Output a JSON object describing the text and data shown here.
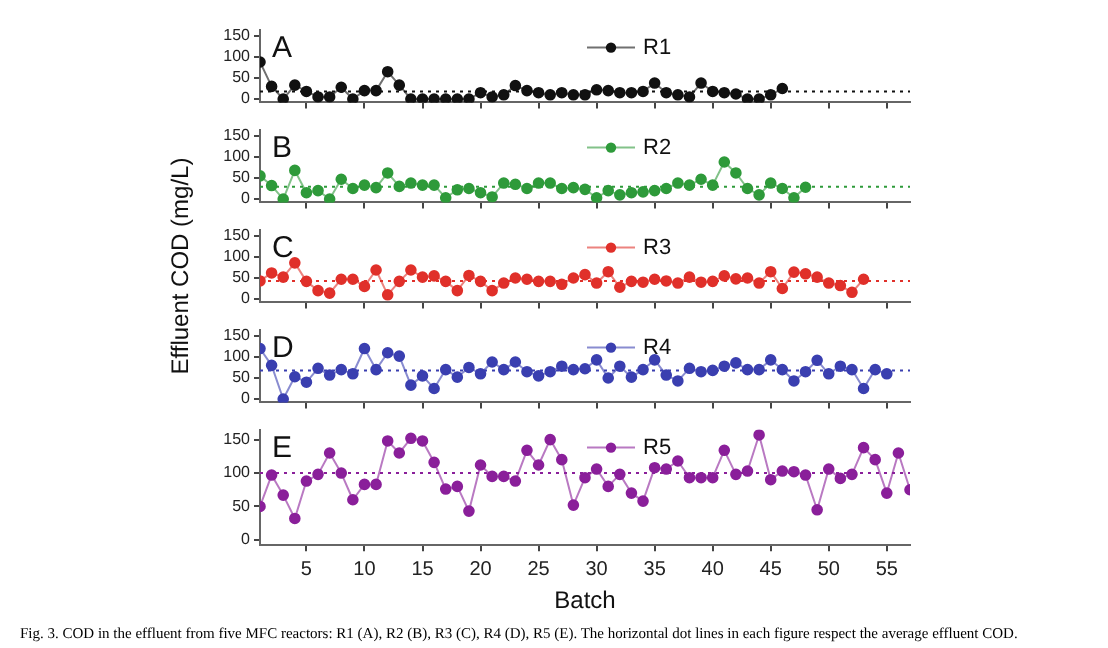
{
  "chart_data": [
    {
      "type": "line",
      "annotations": [
        "A"
      ],
      "legend": "top",
      "marker": "circle",
      "line_style": "solid",
      "grid": false,
      "tick_labels": "y",
      "xlim": [
        1,
        57
      ],
      "xticks": [
        5,
        10,
        15,
        20,
        25,
        30,
        35,
        40,
        45,
        50,
        55
      ],
      "ylim": [
        -8,
        165
      ],
      "yticks": [
        0,
        50,
        100,
        150
      ],
      "x": [
        1,
        2,
        3,
        4,
        5,
        6,
        7,
        8,
        9,
        10,
        11,
        12,
        13,
        14,
        15,
        16,
        17,
        18,
        19,
        20,
        21,
        22,
        23,
        24,
        25,
        26,
        27,
        28,
        29,
        30,
        31,
        32,
        33,
        34,
        35,
        36,
        37,
        38,
        39,
        40,
        41,
        42,
        43,
        44,
        45,
        46
      ],
      "series": [
        {
          "name": "R1",
          "color": "#111111",
          "values": [
            88,
            30,
            0,
            33,
            18,
            5,
            5,
            28,
            0,
            20,
            20,
            65,
            33,
            0,
            0,
            0,
            0,
            0,
            0,
            15,
            5,
            10,
            32,
            20,
            15,
            10,
            15,
            10,
            10,
            22,
            20,
            15,
            15,
            18,
            38,
            15,
            10,
            5,
            38,
            18,
            15,
            12,
            0,
            0,
            10,
            25
          ]
        }
      ],
      "ref_lines": [
        {
          "axis": "y",
          "value": 18,
          "color": "#111111",
          "line_style": "dotted"
        }
      ]
    },
    {
      "type": "line",
      "annotations": [
        "B"
      ],
      "legend": "top",
      "marker": "circle",
      "line_style": "solid",
      "grid": false,
      "tick_labels": "y",
      "xlim": [
        1,
        57
      ],
      "xticks": [
        5,
        10,
        15,
        20,
        25,
        30,
        35,
        40,
        45,
        50,
        55
      ],
      "ylim": [
        -8,
        165
      ],
      "yticks": [
        0,
        50,
        100,
        150
      ],
      "x": [
        1,
        2,
        3,
        4,
        5,
        6,
        7,
        8,
        9,
        10,
        11,
        12,
        13,
        14,
        15,
        16,
        17,
        18,
        19,
        20,
        21,
        22,
        23,
        24,
        25,
        26,
        27,
        28,
        29,
        30,
        31,
        32,
        33,
        34,
        35,
        36,
        37,
        38,
        39,
        40,
        41,
        42,
        43,
        44,
        45,
        46,
        47,
        48
      ],
      "series": [
        {
          "name": "R2",
          "color": "#2e9a3a",
          "values": [
            55,
            32,
            0,
            68,
            15,
            20,
            0,
            47,
            25,
            33,
            27,
            62,
            30,
            38,
            33,
            33,
            3,
            22,
            25,
            15,
            5,
            38,
            35,
            25,
            38,
            38,
            25,
            27,
            23,
            3,
            20,
            10,
            15,
            17,
            20,
            25,
            38,
            33,
            47,
            33,
            88,
            62,
            25,
            10,
            38,
            25,
            3,
            28
          ]
        }
      ],
      "ref_lines": [
        {
          "axis": "y",
          "value": 29,
          "color": "#2e9a3a",
          "line_style": "dotted"
        }
      ]
    },
    {
      "type": "line",
      "annotations": [
        "C"
      ],
      "ylabel": "Effluent COD (mg/L)",
      "legend": "top",
      "marker": "circle",
      "line_style": "solid",
      "grid": false,
      "tick_labels": "y",
      "xlim": [
        1,
        57
      ],
      "xticks": [
        5,
        10,
        15,
        20,
        25,
        30,
        35,
        40,
        45,
        50,
        55
      ],
      "ylim": [
        -8,
        165
      ],
      "yticks": [
        0,
        50,
        100,
        150
      ],
      "x": [
        1,
        2,
        3,
        4,
        5,
        6,
        7,
        8,
        9,
        10,
        11,
        12,
        13,
        14,
        15,
        16,
        17,
        18,
        19,
        20,
        21,
        22,
        23,
        24,
        25,
        26,
        27,
        28,
        29,
        30,
        31,
        32,
        33,
        34,
        35,
        36,
        37,
        38,
        39,
        40,
        41,
        42,
        43,
        44,
        45,
        46,
        47,
        48,
        49,
        50,
        51,
        52,
        53
      ],
      "series": [
        {
          "name": "R3",
          "color": "#e0302a",
          "values": [
            43,
            62,
            52,
            86,
            42,
            20,
            14,
            47,
            47,
            30,
            69,
            10,
            42,
            69,
            52,
            55,
            42,
            20,
            56,
            42,
            20,
            38,
            50,
            47,
            42,
            42,
            35,
            50,
            58,
            38,
            65,
            28,
            42,
            40,
            47,
            43,
            38,
            52,
            40,
            42,
            55,
            48,
            50,
            38,
            65,
            25,
            64,
            60,
            52,
            38,
            32,
            16,
            47
          ]
        }
      ],
      "ref_lines": [
        {
          "axis": "y",
          "value": 43,
          "color": "#e0302a",
          "line_style": "dotted"
        }
      ]
    },
    {
      "type": "line",
      "annotations": [
        "D"
      ],
      "legend": "top",
      "marker": "circle",
      "line_style": "solid",
      "grid": false,
      "tick_labels": "y",
      "xlim": [
        1,
        57
      ],
      "xticks": [
        5,
        10,
        15,
        20,
        25,
        30,
        35,
        40,
        45,
        50,
        55
      ],
      "ylim": [
        -8,
        165
      ],
      "yticks": [
        0,
        50,
        100,
        150
      ],
      "x": [
        1,
        2,
        3,
        4,
        5,
        6,
        7,
        8,
        9,
        10,
        11,
        12,
        13,
        14,
        15,
        16,
        17,
        18,
        19,
        20,
        21,
        22,
        23,
        24,
        25,
        26,
        27,
        28,
        29,
        30,
        31,
        32,
        33,
        34,
        35,
        36,
        37,
        38,
        39,
        40,
        41,
        42,
        43,
        44,
        45,
        46,
        47,
        48,
        49,
        50,
        51,
        52,
        53,
        54,
        55
      ],
      "series": [
        {
          "name": "R4",
          "color": "#3a3fb0",
          "values": [
            120,
            80,
            0,
            53,
            40,
            73,
            57,
            70,
            60,
            120,
            70,
            110,
            102,
            33,
            55,
            25,
            70,
            52,
            75,
            60,
            88,
            70,
            88,
            65,
            55,
            65,
            78,
            70,
            72,
            93,
            50,
            78,
            52,
            70,
            93,
            57,
            43,
            73,
            65,
            68,
            78,
            86,
            70,
            70,
            93,
            70,
            43,
            65,
            92,
            60,
            78,
            70,
            25,
            70,
            60
          ]
        }
      ],
      "ref_lines": [
        {
          "axis": "y",
          "value": 68,
          "color": "#3a3fb0",
          "line_style": "dotted"
        }
      ]
    },
    {
      "type": "line",
      "annotations": [
        "E",
        "Fig. 3. COD in the effluent from five MFC reactors: R1 (A), R2 (B), R3 (C), R4 (D), R5 (E). The horizontal dot lines in each figure respect the average effluent COD."
      ],
      "xlabel": "Batch",
      "legend": "top",
      "marker": "circle",
      "line_style": "solid",
      "grid": false,
      "xlim": [
        1,
        57
      ],
      "xticks": [
        5,
        10,
        15,
        20,
        25,
        30,
        35,
        40,
        45,
        50,
        55
      ],
      "ylim": [
        -8,
        165
      ],
      "yticks": [
        0,
        50,
        100,
        150
      ],
      "x": [
        1,
        2,
        3,
        4,
        5,
        6,
        7,
        8,
        9,
        10,
        11,
        12,
        13,
        14,
        15,
        16,
        17,
        18,
        19,
        20,
        21,
        22,
        23,
        24,
        25,
        26,
        27,
        28,
        29,
        30,
        31,
        32,
        33,
        34,
        35,
        36,
        37,
        38,
        39,
        40,
        41,
        42,
        43,
        44,
        45,
        46,
        47,
        48,
        49,
        50,
        51,
        52,
        53,
        54,
        55,
        56,
        57
      ],
      "series": [
        {
          "name": "R5",
          "color": "#8a1f9a",
          "values": [
            50,
            97,
            67,
            32,
            88,
            98,
            130,
            100,
            60,
            83,
            83,
            148,
            130,
            152,
            148,
            116,
            76,
            80,
            43,
            112,
            95,
            95,
            88,
            134,
            112,
            150,
            120,
            52,
            93,
            106,
            80,
            98,
            70,
            58,
            108,
            106,
            118,
            93,
            93,
            93,
            134,
            98,
            103,
            157,
            90,
            103,
            102,
            97,
            45,
            106,
            92,
            98,
            138,
            120,
            70,
            130,
            75
          ]
        }
      ],
      "ref_lines": [
        {
          "axis": "y",
          "value": 100,
          "color": "#8a1f9a",
          "line_style": "dotted"
        }
      ]
    }
  ]
}
